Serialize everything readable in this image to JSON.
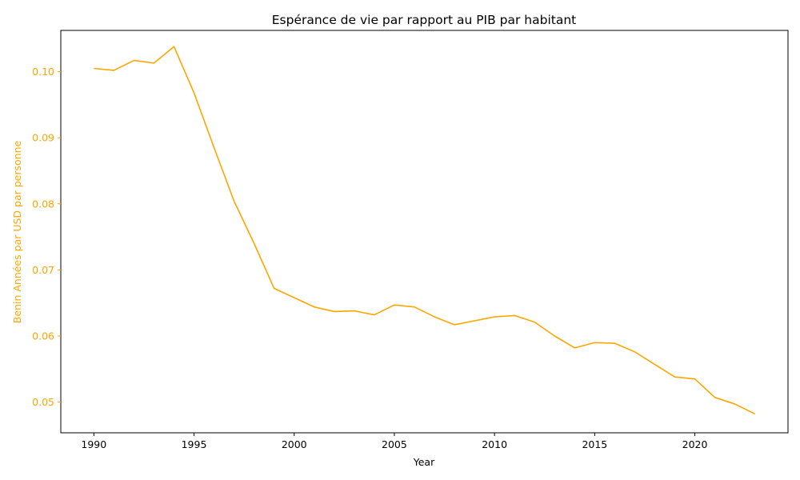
{
  "chart_data": {
    "type": "line",
    "title": "Espérance de vie par rapport au PIB par habitant",
    "xlabel": "Year",
    "ylabel": "Benin Années par USD par personne",
    "series_color": "#FFA500",
    "axis_color": "#000000",
    "xlim": [
      1988.35,
      2024.65
    ],
    "ylim": [
      0.04535,
      0.10625
    ],
    "x_ticks": [
      1990,
      1995,
      2000,
      2005,
      2010,
      2015,
      2020
    ],
    "x_tick_labels": [
      "1990",
      "1995",
      "2000",
      "2005",
      "2010",
      "2015",
      "2020"
    ],
    "y_ticks": [
      0.05,
      0.06,
      0.07,
      0.08,
      0.09,
      0.1
    ],
    "y_tick_labels": [
      "0.05",
      "0.06",
      "0.07",
      "0.08",
      "0.09",
      "0.10"
    ],
    "series": [
      {
        "name": "Benin",
        "x": [
          1990,
          1991,
          1992,
          1993,
          1994,
          1995,
          1996,
          1997,
          1998,
          1999,
          2000,
          2001,
          2002,
          2003,
          2004,
          2005,
          2006,
          2007,
          2008,
          2009,
          2010,
          2011,
          2012,
          2013,
          2014,
          2015,
          2016,
          2017,
          2018,
          2019,
          2020,
          2021,
          2022,
          2023
        ],
        "values": [
          0.1005,
          0.1002,
          0.1017,
          0.1013,
          0.1038,
          0.0968,
          0.0885,
          0.0804,
          0.074,
          0.0672,
          0.0658,
          0.0644,
          0.0637,
          0.0638,
          0.0632,
          0.0647,
          0.0644,
          0.0629,
          0.0617,
          0.0623,
          0.0629,
          0.0631,
          0.0621,
          0.06,
          0.0582,
          0.059,
          0.0589,
          0.0576,
          0.0557,
          0.0538,
          0.0535,
          0.0507,
          0.0497,
          0.0482
        ]
      }
    ]
  }
}
